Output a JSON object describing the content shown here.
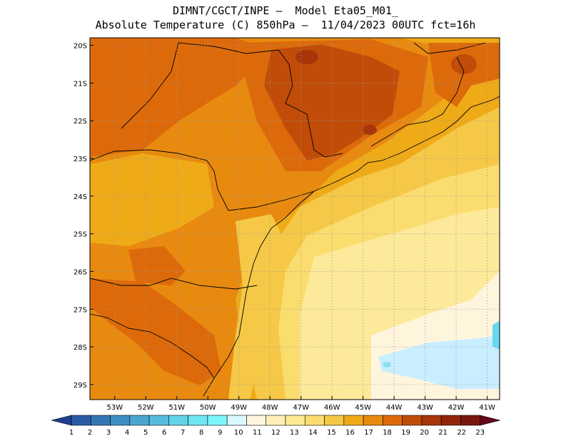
{
  "header": {
    "line1": "DIMNT/CGCT/INPE —  Model Eta05_M01_",
    "line2": "Absolute Temperature (C) 850hPa —  11/04/2023 00UTC fct=16h"
  },
  "map": {
    "lon_labels": [
      "53W",
      "52W",
      "51W",
      "50W",
      "49W",
      "48W",
      "47W",
      "46W",
      "45W",
      "44W",
      "43W",
      "42W",
      "41W"
    ],
    "lat_labels": [
      "20S",
      "21S",
      "22S",
      "23S",
      "24S",
      "25S",
      "26S",
      "27S",
      "28S",
      "29S"
    ],
    "lon_range": [
      -53.8,
      -40.6
    ],
    "lat_range": [
      -29.4,
      -19.8
    ],
    "grid": "dotted",
    "field_colors": {
      "c11": "#fff5dd",
      "c13": "#fde99a",
      "c14": "#fbdc6e",
      "c15": "#f6c847",
      "c16": "#efaa18",
      "c17": "#e88a10",
      "c18": "#dd6a0a",
      "c19": "#c04c08",
      "c9": "#c9eeff",
      "c10": "#9fe4fb"
    }
  },
  "colorbar": {
    "labels": [
      "1",
      "2",
      "3",
      "4",
      "5",
      "6",
      "7",
      "8",
      "9",
      "10",
      "11",
      "12",
      "13",
      "14",
      "15",
      "16",
      "17",
      "18",
      "19",
      "20",
      "21",
      "22",
      "23"
    ],
    "colors": [
      "#1f3f8f",
      "#2a5ba5",
      "#3476b5",
      "#3e8ec4",
      "#4aa6d0",
      "#56bcdc",
      "#62d3e8",
      "#6ee6f1",
      "#7cf5fb",
      "#d9f8ff",
      "#fff6e0",
      "#fff0b8",
      "#feea94",
      "#fbdc6e",
      "#f6c847",
      "#efaa18",
      "#e88a10",
      "#dd6a0a",
      "#c04c08",
      "#a8340a",
      "#92240c",
      "#7a170c",
      "#64081c"
    ]
  }
}
